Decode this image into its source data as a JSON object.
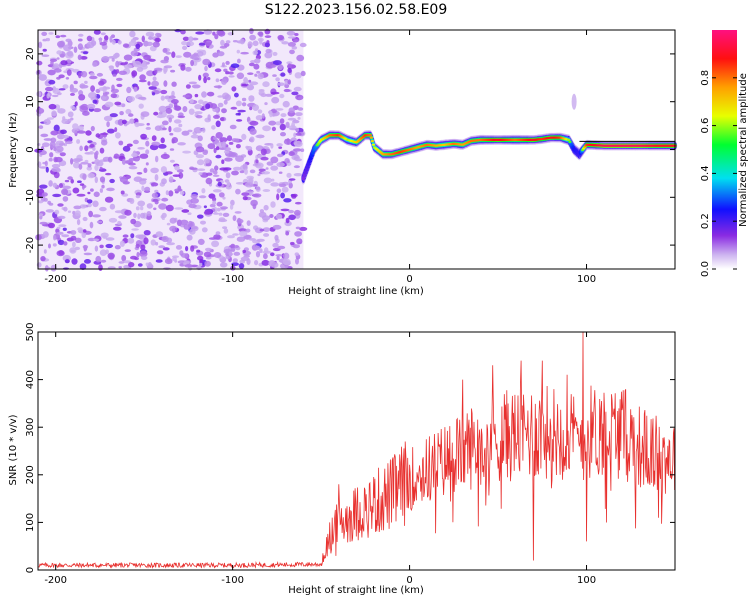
{
  "title": "S122.2023.156.02.58.E09",
  "chart_data": [
    {
      "type": "heatmap",
      "name": "spectrogram",
      "xlabel": "Height of straight line (km)",
      "ylabel": "Frequency (Hz)",
      "xlim": [
        -210,
        150
      ],
      "ylim": [
        -25,
        25
      ],
      "xticks": [
        -200,
        -100,
        0,
        100
      ],
      "yticks": [
        -20,
        -10,
        0,
        10,
        20
      ],
      "colorbar": {
        "label": "Normalized spectral amplitude",
        "range": [
          0.0,
          1.0
        ],
        "ticks": [
          0.0,
          0.2,
          0.4,
          0.6,
          0.8
        ],
        "colormap": "rainbow (white-violet-blue-cyan-green-yellow-red-magenta)"
      },
      "noise_region_x": [
        -210,
        -60
      ],
      "ridge": {
        "x": [
          -60,
          -57,
          -54,
          -50,
          -45,
          -40,
          -35,
          -30,
          -25,
          -22,
          -20,
          -15,
          -10,
          -5,
          0,
          5,
          10,
          15,
          20,
          25,
          30,
          35,
          40,
          45,
          50,
          55,
          60,
          65,
          70,
          75,
          80,
          85,
          90,
          93,
          96,
          100,
          110,
          120,
          130,
          140,
          150
        ],
        "y": [
          -6,
          -3,
          0,
          2,
          3,
          3,
          2,
          1.5,
          3,
          3,
          0.5,
          -1,
          -1,
          -0.5,
          0,
          0.5,
          1,
          0.8,
          1,
          1.2,
          1,
          1.8,
          2,
          2,
          2,
          2,
          2,
          2,
          2,
          2.2,
          2.5,
          2.5,
          2,
          0,
          -1,
          1,
          0.8,
          0.8,
          0.8,
          0.8,
          0.8
        ],
        "amplitude": [
          0.25,
          0.35,
          0.5,
          0.65,
          0.8,
          0.85,
          0.6,
          0.7,
          0.85,
          0.8,
          0.6,
          0.75,
          0.8,
          0.85,
          0.8,
          0.75,
          0.8,
          0.75,
          0.7,
          0.8,
          0.75,
          0.8,
          0.8,
          0.85,
          0.9,
          0.85,
          0.8,
          0.85,
          0.9,
          0.85,
          0.9,
          0.85,
          0.6,
          0.4,
          0.35,
          0.85,
          0.95,
          0.95,
          0.95,
          0.9,
          0.9
        ]
      }
    },
    {
      "type": "line",
      "name": "snr",
      "xlabel": "Height of straight line (km)",
      "ylabel": "SNR (10 * v/v)",
      "xlim": [
        -210,
        150
      ],
      "ylim": [
        0,
        500
      ],
      "xticks": [
        -200,
        -100,
        0,
        100
      ],
      "yticks": [
        0,
        100,
        200,
        300,
        400,
        500
      ],
      "color": "#e8302e",
      "envelope_x": [
        -210,
        -100,
        -50,
        -45,
        -40,
        -30,
        -20,
        -10,
        0,
        10,
        20,
        30,
        40,
        50,
        60,
        70,
        80,
        90,
        95,
        100,
        110,
        120,
        130,
        140,
        150
      ],
      "envelope_y": [
        10,
        10,
        12,
        70,
        100,
        120,
        140,
        160,
        190,
        210,
        230,
        250,
        270,
        280,
        285,
        290,
        290,
        285,
        270,
        290,
        295,
        290,
        260,
        240,
        240
      ],
      "spikes": [
        {
          "x": 30,
          "y": 400
        },
        {
          "x": 47,
          "y": 430
        },
        {
          "x": 63,
          "y": 440
        },
        {
          "x": 70,
          "y": 20
        },
        {
          "x": 75,
          "y": 440
        },
        {
          "x": 89,
          "y": 410
        },
        {
          "x": 98,
          "y": 510
        },
        {
          "x": 100,
          "y": 60
        },
        {
          "x": -40,
          "y": 180
        }
      ]
    }
  ]
}
